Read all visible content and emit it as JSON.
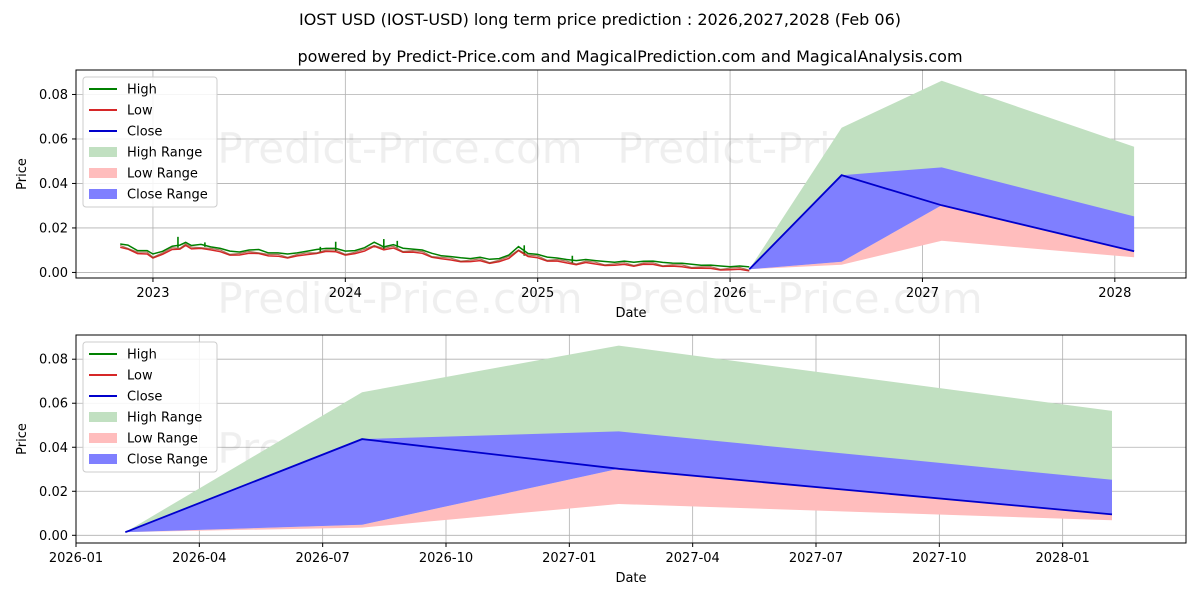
{
  "header": {
    "title": "IOST USD (IOST-USD) long term price prediction : 2026,2027,2028 (Feb 06)",
    "subtitle": "powered by Predict-Price.com and MagicalPrediction.com and MagicalAnalysis.com"
  },
  "watermark": "Predict-Price.com",
  "colors": {
    "high": "#008000",
    "low": "#d62728",
    "close": "#0000cc",
    "high_range": "#c1e0c1",
    "low_range": "#ffbdbd",
    "close_range": "#7f7fff"
  },
  "legend": {
    "high": "High",
    "low": "Low",
    "close": "Close",
    "high_range": "High Range",
    "low_range": "Low Range",
    "close_range": "Close Range"
  },
  "chart_data": [
    {
      "type": "line",
      "title": "IOST USD (IOST-USD) long term price prediction : 2026,2027,2028 (Feb 06)",
      "xlabel": "Date",
      "ylabel": "Price",
      "xlim": [
        2022.6,
        2028.37
      ],
      "ylim": [
        -0.0025,
        0.091
      ],
      "grid": true,
      "legend_position": "top-left",
      "x_tick_labels": [
        "2023",
        "2024",
        "2025",
        "2026",
        "2027",
        "2028"
      ],
      "x_tick_values": [
        2023,
        2024,
        2025,
        2026,
        2027,
        2028
      ],
      "y_tick_labels": [
        "0.00",
        "0.02",
        "0.04",
        "0.06",
        "0.08"
      ],
      "y_tick_values": [
        0,
        0.02,
        0.04,
        0.06,
        0.08
      ],
      "history": {
        "x": [
          2022.83,
          2022.87,
          2022.92,
          2022.97,
          2023.0,
          2023.05,
          2023.1,
          2023.14,
          2023.17,
          2023.2,
          2023.25,
          2023.3,
          2023.35,
          2023.4,
          2023.45,
          2023.5,
          2023.55,
          2023.6,
          2023.65,
          2023.7,
          2023.75,
          2023.8,
          2023.85,
          2023.9,
          2023.95,
          2024.0,
          2024.05,
          2024.1,
          2024.15,
          2024.2,
          2024.25,
          2024.3,
          2024.35,
          2024.4,
          2024.45,
          2024.5,
          2024.55,
          2024.6,
          2024.65,
          2024.7,
          2024.75,
          2024.8,
          2024.85,
          2024.9,
          2024.95,
          2025.0,
          2025.05,
          2025.1,
          2025.15,
          2025.2,
          2025.25,
          2025.3,
          2025.35,
          2025.4,
          2025.45,
          2025.5,
          2025.55,
          2025.6,
          2025.65,
          2025.7,
          2025.75,
          2025.8,
          2025.85,
          2025.9,
          2025.95,
          2026.0,
          2026.05,
          2026.1
        ],
        "close": [
          0.0115,
          0.0112,
          0.0088,
          0.0085,
          0.0072,
          0.0085,
          0.0105,
          0.0112,
          0.0125,
          0.0108,
          0.0115,
          0.0105,
          0.0095,
          0.0085,
          0.0082,
          0.0088,
          0.0092,
          0.0078,
          0.0075,
          0.0072,
          0.0078,
          0.0082,
          0.0092,
          0.0098,
          0.0095,
          0.0085,
          0.0088,
          0.0098,
          0.0125,
          0.0105,
          0.0112,
          0.0098,
          0.0095,
          0.0088,
          0.0075,
          0.0065,
          0.0058,
          0.0055,
          0.0052,
          0.0055,
          0.0048,
          0.0052,
          0.0065,
          0.0105,
          0.0075,
          0.0068,
          0.0058,
          0.0055,
          0.0045,
          0.0042,
          0.0048,
          0.004,
          0.0038,
          0.0036,
          0.0038,
          0.0035,
          0.004,
          0.0038,
          0.0034,
          0.0032,
          0.0028,
          0.0026,
          0.0022,
          0.002,
          0.0018,
          0.0016,
          0.0016,
          0.0014
        ],
        "high_spikes": [
          {
            "x": 2023.13,
            "value": 0.016
          },
          {
            "x": 2023.27,
            "value": 0.0135
          },
          {
            "x": 2023.87,
            "value": 0.0115
          },
          {
            "x": 2023.95,
            "value": 0.0138
          },
          {
            "x": 2024.2,
            "value": 0.015
          },
          {
            "x": 2024.27,
            "value": 0.0142
          },
          {
            "x": 2024.93,
            "value": 0.0122
          },
          {
            "x": 2025.18,
            "value": 0.0075
          }
        ]
      },
      "forecast": {
        "x": [
          2026.1,
          2026.58,
          2027.1,
          2028.1
        ],
        "close": [
          0.0014,
          0.0437,
          0.0302,
          0.0095
        ],
        "high_range_upper": [
          0.0014,
          0.065,
          0.0862,
          0.0565
        ],
        "high_range_lower": [
          0.0014,
          0.0048,
          0.0302,
          0.0095
        ],
        "close_range_upper": [
          0.0014,
          0.0437,
          0.0472,
          0.0252
        ],
        "close_range_lower": [
          0.0014,
          0.0048,
          0.0302,
          0.0095
        ],
        "low_range_upper": [
          0.0014,
          0.0048,
          0.0302,
          0.0095
        ],
        "low_range_lower": [
          0.0014,
          0.0035,
          0.0142,
          0.0068
        ]
      }
    },
    {
      "type": "line",
      "title": "",
      "xlabel": "Date",
      "ylabel": "Price",
      "xlim": [
        2026.0,
        2028.25
      ],
      "ylim": [
        -0.0035,
        0.091
      ],
      "grid": true,
      "legend_position": "top-left",
      "x_tick_labels": [
        "2026-01",
        "2026-04",
        "2026-07",
        "2026-10",
        "2027-01",
        "2027-04",
        "2027-07",
        "2027-10",
        "2028-01"
      ],
      "x_tick_values": [
        2026.0,
        2026.25,
        2026.5,
        2026.75,
        2027.0,
        2027.25,
        2027.5,
        2027.75,
        2028.0
      ],
      "y_tick_labels": [
        "0.00",
        "0.02",
        "0.04",
        "0.06",
        "0.08"
      ],
      "y_tick_values": [
        0,
        0.02,
        0.04,
        0.06,
        0.08
      ],
      "forecast": {
        "x": [
          2026.1,
          2026.58,
          2027.1,
          2028.1
        ],
        "close": [
          0.0014,
          0.0437,
          0.0302,
          0.0095
        ],
        "high_range_upper": [
          0.0014,
          0.065,
          0.0862,
          0.0565
        ],
        "high_range_lower": [
          0.0014,
          0.0048,
          0.0302,
          0.0095
        ],
        "close_range_upper": [
          0.0014,
          0.0437,
          0.0472,
          0.0252
        ],
        "close_range_lower": [
          0.0014,
          0.0048,
          0.0302,
          0.0095
        ],
        "low_range_upper": [
          0.0014,
          0.0048,
          0.0302,
          0.0095
        ],
        "low_range_lower": [
          0.0014,
          0.0035,
          0.0142,
          0.0068
        ]
      }
    }
  ]
}
